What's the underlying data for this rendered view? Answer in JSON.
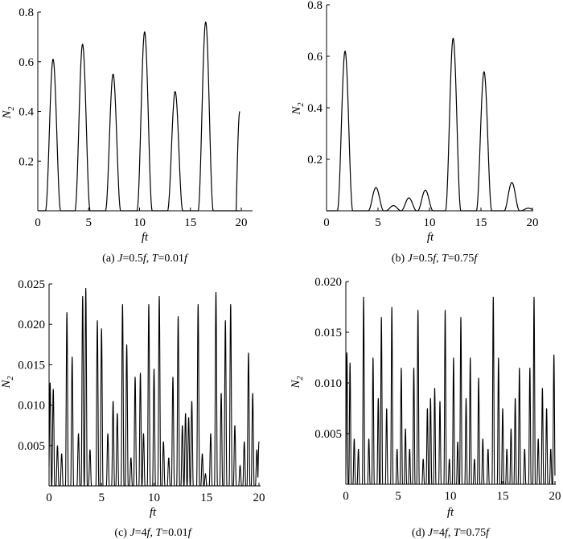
{
  "chart_data": [
    {
      "type": "line",
      "panel": "a",
      "caption": {
        "prefix": "(a) ",
        "v1": "J",
        "t1": "=0.5",
        "u1": "f",
        "sep": ", ",
        "v2": "T",
        "t2": "=0.01",
        "u2": "f"
      },
      "xlabel": "ft",
      "ylabel": {
        "main": "N",
        "sub": "2"
      },
      "xlim": [
        0,
        20
      ],
      "ylim": [
        0,
        0.8
      ],
      "xticks": [
        "0",
        "5",
        "10",
        "15",
        "20"
      ],
      "xtick_values": [
        0,
        5,
        10,
        15,
        20
      ],
      "yticks": [
        "0.2",
        "0.4",
        "0.6",
        "0.8"
      ],
      "ytick_values": [
        0.2,
        0.4,
        0.6,
        0.8
      ],
      "line_color": "#000000",
      "series": [
        {
          "peaks": [
            [
              1.5,
              0.61
            ],
            [
              4.4,
              0.67
            ],
            [
              7.4,
              0.55
            ],
            [
              10.5,
              0.72
            ],
            [
              13.5,
              0.48
            ],
            [
              16.5,
              0.76
            ]
          ],
          "period": 3.0,
          "width": 0.75,
          "end": {
            "x": 19.85,
            "y": 0.4
          }
        }
      ]
    },
    {
      "type": "line",
      "panel": "b",
      "caption": {
        "prefix": "(b) ",
        "v1": "J",
        "t1": "=0.5",
        "u1": "f",
        "sep": ", ",
        "v2": "T",
        "t2": "=0.75",
        "u2": "f"
      },
      "xlabel": "ft",
      "ylabel": {
        "main": "N",
        "sub": "2"
      },
      "xlim": [
        0,
        20
      ],
      "ylim": [
        0,
        0.8
      ],
      "xticks": [
        "0",
        "5",
        "10",
        "15",
        "20"
      ],
      "xtick_values": [
        0,
        5,
        10,
        15,
        20
      ],
      "yticks": [
        "0.2",
        "0.4",
        "0.6",
        "0.8"
      ],
      "ytick_values": [
        0.2,
        0.4,
        0.6,
        0.8
      ],
      "line_color": "#000000",
      "series": [
        {
          "peaks": [
            [
              1.8,
              0.62
            ],
            [
              4.8,
              0.09
            ],
            [
              6.5,
              0.02
            ],
            [
              8.0,
              0.05
            ],
            [
              9.6,
              0.08
            ],
            [
              12.3,
              0.67
            ],
            [
              15.3,
              0.54
            ],
            [
              18.0,
              0.11
            ],
            [
              19.6,
              0.01
            ]
          ],
          "period": 3.0,
          "width": 0.75
        }
      ]
    },
    {
      "type": "line",
      "panel": "c",
      "caption": {
        "prefix": "(c) ",
        "v1": "J",
        "t1": "=4",
        "u1": "f",
        "sep": ", ",
        "v2": "T",
        "t2": "=0.01",
        "u2": "f"
      },
      "xlabel": "ft",
      "ylabel": {
        "main": "N",
        "sub": "2"
      },
      "xlim": [
        0,
        20
      ],
      "ylim": [
        0,
        0.025
      ],
      "xticks": [
        "0",
        "5",
        "10",
        "15",
        "20"
      ],
      "xtick_values": [
        0,
        5,
        10,
        15,
        20
      ],
      "yticks": [
        "0.005",
        "0.010",
        "0.015",
        "0.020",
        "0.025"
      ],
      "ytick_values": [
        0.005,
        0.01,
        0.015,
        0.02,
        0.025
      ],
      "line_color": "#000000",
      "series": [
        {
          "peaks": [
            [
              0.1,
              0.0128
            ],
            [
              0.4,
              0.012
            ],
            [
              0.8,
              0.005
            ],
            [
              1.2,
              0.004
            ],
            [
              1.7,
              0.0215
            ],
            [
              2.2,
              0.016
            ],
            [
              2.8,
              0.0065
            ],
            [
              3.2,
              0.0235
            ],
            [
              3.5,
              0.0245
            ],
            [
              3.9,
              0.0045
            ],
            [
              4.6,
              0.0205
            ],
            [
              5.0,
              0.0195
            ],
            [
              5.6,
              0.0065
            ],
            [
              6.1,
              0.0105
            ],
            [
              6.5,
              0.009
            ],
            [
              7.0,
              0.0225
            ],
            [
              7.4,
              0.0175
            ],
            [
              7.8,
              0.0035
            ],
            [
              8.2,
              0.0135
            ],
            [
              8.7,
              0.014
            ],
            [
              9.0,
              0.0065
            ],
            [
              9.5,
              0.0225
            ],
            [
              10.0,
              0.0145
            ],
            [
              10.5,
              0.0235
            ],
            [
              10.9,
              0.0055
            ],
            [
              11.4,
              0.0035
            ],
            [
              11.8,
              0.0135
            ],
            [
              12.3,
              0.021
            ],
            [
              12.7,
              0.0075
            ],
            [
              13.0,
              0.009
            ],
            [
              13.3,
              0.0085
            ],
            [
              13.6,
              0.0105
            ],
            [
              14.2,
              0.0225
            ],
            [
              14.6,
              0.004
            ],
            [
              14.9,
              0.0015
            ],
            [
              15.4,
              0.0065
            ],
            [
              15.9,
              0.024
            ],
            [
              16.4,
              0.0115
            ],
            [
              16.8,
              0.0205
            ],
            [
              17.3,
              0.0225
            ],
            [
              17.7,
              0.0075
            ],
            [
              18.2,
              0.0025
            ],
            [
              18.6,
              0.0055
            ],
            [
              19.0,
              0.0165
            ],
            [
              19.4,
              0.0115
            ],
            [
              19.8,
              0.0045
            ],
            [
              20.0,
              0.0055
            ]
          ],
          "width": 0.14
        }
      ]
    },
    {
      "type": "line",
      "panel": "d",
      "caption": {
        "prefix": "(d) ",
        "v1": "J",
        "t1": "=4",
        "u1": "f",
        "sep": ", ",
        "v2": "T",
        "t2": "=0.75",
        "u2": "f"
      },
      "xlabel": "ft",
      "ylabel": {
        "main": "N",
        "sub": "2"
      },
      "xlim": [
        0,
        20
      ],
      "ylim": [
        0,
        0.02
      ],
      "xticks": [
        "0",
        "5",
        "10",
        "15",
        "20"
      ],
      "xtick_values": [
        0,
        5,
        10,
        15,
        20
      ],
      "yticks": [
        "0.005",
        "0.010",
        "0.015",
        "0.020"
      ],
      "ytick_values": [
        0.005,
        0.01,
        0.015,
        0.02
      ],
      "line_color": "#000000",
      "series": [
        {
          "peaks": [
            [
              0.1,
              0.013
            ],
            [
              0.4,
              0.012
            ],
            [
              0.8,
              0.0045
            ],
            [
              1.2,
              0.0035
            ],
            [
              1.7,
              0.0185
            ],
            [
              2.2,
              0.0045
            ],
            [
              2.6,
              0.0125
            ],
            [
              3.1,
              0.0085
            ],
            [
              3.4,
              0.0165
            ],
            [
              3.9,
              0.0075
            ],
            [
              4.4,
              0.0175
            ],
            [
              4.9,
              0.0035
            ],
            [
              5.3,
              0.0115
            ],
            [
              5.7,
              0.0055
            ],
            [
              6.1,
              0.0035
            ],
            [
              6.5,
              0.0115
            ],
            [
              6.9,
              0.0172
            ],
            [
              7.4,
              0.0025
            ],
            [
              7.8,
              0.0075
            ],
            [
              8.1,
              0.0085
            ],
            [
              8.5,
              0.0095
            ],
            [
              9.0,
              0.0082
            ],
            [
              9.5,
              0.0172
            ],
            [
              9.9,
              0.0025
            ],
            [
              10.3,
              0.0125
            ],
            [
              10.7,
              0.0042
            ],
            [
              11.0,
              0.0165
            ],
            [
              11.5,
              0.0085
            ],
            [
              11.9,
              0.0125
            ],
            [
              12.3,
              0.0025
            ],
            [
              12.7,
              0.0105
            ],
            [
              13.1,
              0.0045
            ],
            [
              13.6,
              0.0035
            ],
            [
              14.1,
              0.0185
            ],
            [
              14.6,
              0.0125
            ],
            [
              15.0,
              0.0075
            ],
            [
              15.4,
              0.0035
            ],
            [
              15.8,
              0.0055
            ],
            [
              16.2,
              0.0085
            ],
            [
              16.6,
              0.0115
            ],
            [
              17.1,
              0.0035
            ],
            [
              17.6,
              0.0115
            ],
            [
              18.0,
              0.0185
            ],
            [
              18.4,
              0.0045
            ],
            [
              18.8,
              0.0095
            ],
            [
              19.2,
              0.0075
            ],
            [
              19.6,
              0.0035
            ],
            [
              19.9,
              0.0128
            ]
          ],
          "width": 0.12
        }
      ]
    }
  ]
}
